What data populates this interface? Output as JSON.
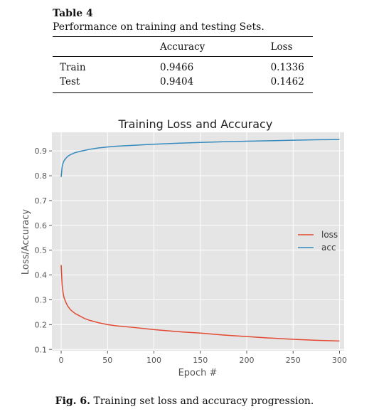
{
  "table": {
    "label": "Table 4",
    "caption": "Performance on training and testing Sets.",
    "headers": [
      "",
      "Accuracy",
      "Loss"
    ],
    "rows": [
      {
        "name": "Train",
        "accuracy": "0.9466",
        "loss": "0.1336"
      },
      {
        "name": "Test",
        "accuracy": "0.9404",
        "loss": "0.1462"
      }
    ]
  },
  "figure": {
    "label": "Fig. 6.",
    "caption": "Training set loss and accuracy progression."
  },
  "chart_data": {
    "type": "line",
    "title": "Training Loss and Accuracy",
    "xlabel": "Epoch #",
    "ylabel": "Loss/Accuracy",
    "xlim": [
      -10,
      305
    ],
    "ylim": [
      0.095,
      0.975
    ],
    "xticks": [
      0,
      50,
      100,
      150,
      200,
      250,
      300
    ],
    "yticks": [
      0.1,
      0.2,
      0.3,
      0.4,
      0.5,
      0.6,
      0.7,
      0.8,
      0.9
    ],
    "grid": true,
    "legend_position": "center-right",
    "background": "#e5e5e5",
    "series": [
      {
        "name": "loss",
        "color": "#e24a33",
        "x": [
          0,
          1,
          2,
          3,
          5,
          7,
          10,
          15,
          20,
          25,
          30,
          40,
          50,
          60,
          80,
          100,
          125,
          150,
          175,
          200,
          225,
          250,
          275,
          300
        ],
        "y": [
          0.44,
          0.36,
          0.33,
          0.31,
          0.29,
          0.275,
          0.26,
          0.245,
          0.235,
          0.225,
          0.218,
          0.208,
          0.2,
          0.195,
          0.188,
          0.18,
          0.172,
          0.166,
          0.158,
          0.152,
          0.146,
          0.141,
          0.137,
          0.134
        ]
      },
      {
        "name": "acc",
        "color": "#348abd",
        "x": [
          0,
          1,
          2,
          3,
          5,
          7,
          10,
          15,
          20,
          25,
          30,
          40,
          50,
          60,
          80,
          100,
          125,
          150,
          175,
          200,
          225,
          250,
          275,
          300
        ],
        "y": [
          0.795,
          0.835,
          0.85,
          0.86,
          0.87,
          0.878,
          0.885,
          0.893,
          0.898,
          0.902,
          0.906,
          0.912,
          0.916,
          0.919,
          0.923,
          0.927,
          0.931,
          0.934,
          0.937,
          0.939,
          0.941,
          0.943,
          0.945,
          0.946
        ]
      }
    ]
  }
}
